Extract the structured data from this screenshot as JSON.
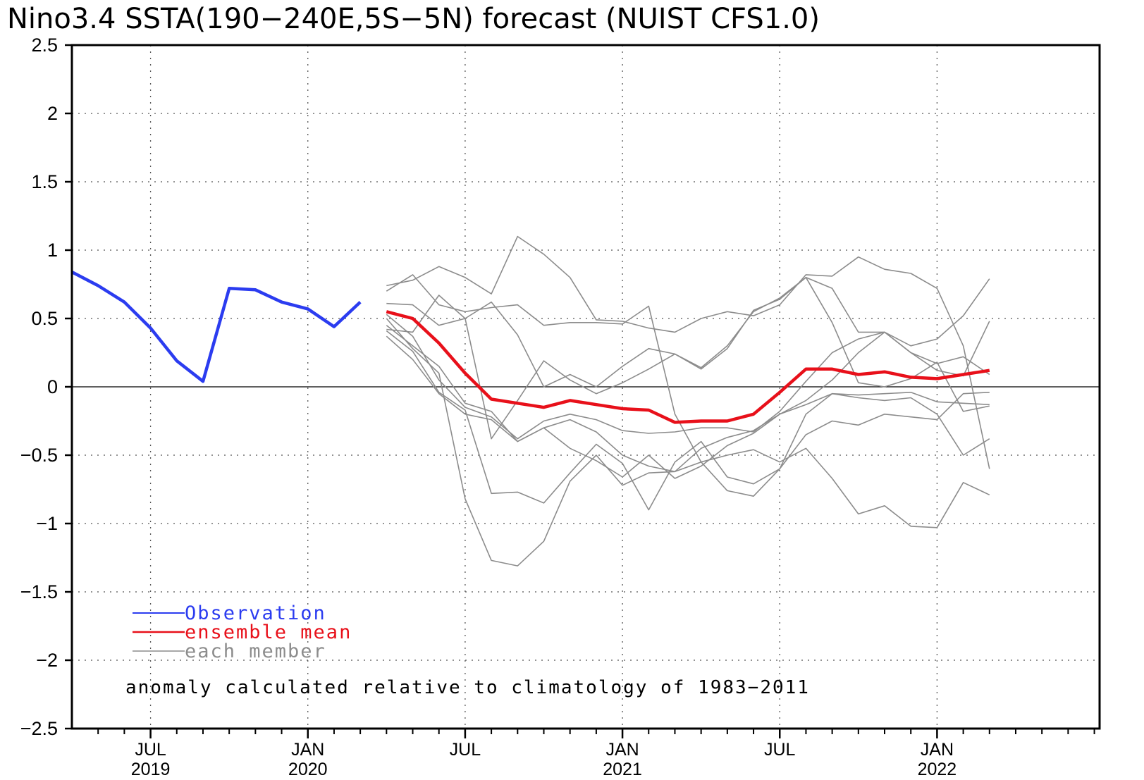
{
  "chart_data": {
    "type": "line",
    "title": "Nino3.4 SSTA(190−240E,5S−5N) forecast (NUIST CFS1.0)",
    "ylim": [
      -2.5,
      2.5
    ],
    "yticks": [
      "2.5",
      "2",
      "1.5",
      "1",
      "0.5",
      "0",
      "−0.5",
      "−1",
      "−1.5",
      "−2",
      "−2.5"
    ],
    "xlim": [
      0,
      39.2
    ],
    "xticks": [
      {
        "x": 3,
        "month": "JUL",
        "year": "2019"
      },
      {
        "x": 9,
        "month": "JAN",
        "year": "2020"
      },
      {
        "x": 15,
        "month": "JUL",
        "year": ""
      },
      {
        "x": 21,
        "month": "JAN",
        "year": "2021"
      },
      {
        "x": 27,
        "month": "JUL",
        "year": ""
      },
      {
        "x": 33,
        "month": "JAN",
        "year": "2022"
      }
    ],
    "grid": true,
    "zero_line": true,
    "legend": [
      {
        "label": "Observation",
        "color": "#2b3cf0"
      },
      {
        "label": "ensemble mean",
        "color": "#e8101a"
      },
      {
        "label": "each member",
        "color": "#8c8c8c"
      }
    ],
    "note": "anomaly calculated relative to climatology of 1983−2011",
    "observation": {
      "color": "#2b3cf0",
      "x": [
        0,
        1,
        2,
        3,
        4,
        5,
        6,
        7,
        8,
        9,
        10,
        11
      ],
      "values": [
        0.84,
        0.74,
        0.62,
        0.43,
        0.19,
        0.04,
        0.72,
        0.71,
        0.62,
        0.57,
        0.44,
        0.62
      ]
    },
    "ensemble_mean": {
      "color": "#e8101a",
      "x": [
        12,
        13,
        14,
        15,
        16,
        17,
        18,
        19,
        20,
        21,
        22,
        23,
        24,
        25,
        26,
        27,
        28,
        29,
        30,
        31,
        32,
        33,
        34,
        35
      ],
      "values": [
        0.55,
        0.5,
        0.32,
        0.1,
        -0.09,
        -0.12,
        -0.15,
        -0.1,
        -0.13,
        -0.16,
        -0.17,
        -0.26,
        -0.25,
        -0.25,
        -0.2,
        -0.04,
        0.13,
        0.13,
        0.09,
        0.11,
        0.07,
        0.06,
        0.09,
        0.12
      ]
    },
    "members": {
      "color": "#8c8c8c",
      "x": [
        12,
        13,
        14,
        15,
        16,
        17,
        18,
        19,
        20,
        21,
        22,
        23,
        24,
        25,
        26,
        27,
        28,
        29,
        30,
        31,
        32,
        33,
        34,
        35
      ],
      "series": [
        [
          0.74,
          0.78,
          0.88,
          0.8,
          0.68,
          1.1,
          0.97,
          0.8,
          0.49,
          0.48,
          0.43,
          0.4,
          0.5,
          0.55,
          0.52,
          0.6,
          0.82,
          0.81,
          0.95,
          0.86,
          0.83,
          0.72,
          0.3,
          -0.6
        ],
        [
          0.7,
          0.82,
          0.6,
          0.55,
          0.58,
          0.6,
          0.45,
          0.47,
          0.47,
          0.46,
          0.59,
          -0.2,
          -0.55,
          -0.76,
          -0.8,
          -0.6,
          -0.35,
          -0.25,
          -0.28,
          -0.2,
          -0.22,
          -0.24,
          -0.05,
          -0.04
        ],
        [
          0.61,
          0.6,
          0.45,
          0.5,
          0.62,
          0.38,
          0.0,
          0.09,
          0.0,
          0.15,
          0.28,
          0.24,
          0.13,
          0.28,
          0.56,
          0.64,
          0.8,
          0.72,
          0.4,
          0.4,
          0.25,
          0.17,
          0.22,
          0.09
        ],
        [
          0.42,
          0.4,
          0.67,
          0.5,
          -0.38,
          -0.1,
          0.19,
          0.05,
          -0.05,
          0.03,
          0.13,
          0.24,
          0.14,
          0.3,
          0.55,
          0.65,
          0.8,
          0.47,
          0.03,
          0.0,
          0.06,
          0.18,
          -0.18,
          -0.14
        ],
        [
          0.53,
          0.37,
          0.05,
          -0.15,
          -0.22,
          -0.38,
          -0.25,
          -0.2,
          -0.24,
          -0.32,
          -0.34,
          -0.33,
          -0.3,
          -0.3,
          -0.33,
          -0.18,
          0.04,
          0.25,
          0.35,
          0.4,
          0.3,
          0.35,
          0.52,
          0.79
        ],
        [
          0.37,
          0.2,
          -0.05,
          -0.2,
          -0.24,
          -0.4,
          -0.3,
          -0.24,
          -0.33,
          -0.5,
          -0.58,
          -0.62,
          -0.45,
          -0.37,
          -0.32,
          -0.2,
          -0.1,
          0.05,
          0.25,
          0.4,
          0.25,
          0.12,
          0.08,
          0.48
        ],
        [
          0.5,
          0.28,
          0.1,
          -0.82,
          -1.27,
          -1.31,
          -1.13,
          -0.69,
          -0.5,
          -0.72,
          -0.63,
          -0.62,
          -0.55,
          -0.5,
          -0.46,
          -0.55,
          -0.45,
          -0.67,
          -0.93,
          -0.87,
          -1.02,
          -1.03,
          -0.7,
          -0.79
        ],
        [
          0.41,
          0.26,
          -0.04,
          -0.17,
          -0.78,
          -0.77,
          -0.85,
          -0.63,
          -0.42,
          -0.56,
          -0.9,
          -0.55,
          -0.4,
          -0.66,
          -0.71,
          -0.6,
          -0.2,
          -0.05,
          -0.08,
          -0.1,
          -0.08,
          -0.2,
          -0.5,
          -0.38
        ],
        [
          0.45,
          0.3,
          0.15,
          -0.12,
          -0.18,
          -0.4,
          -0.3,
          -0.45,
          -0.54,
          -0.66,
          -0.5,
          -0.67,
          -0.58,
          -0.43,
          -0.34,
          -0.2,
          -0.13,
          -0.05,
          -0.06,
          -0.05,
          -0.04,
          -0.11,
          -0.12,
          -0.13
        ]
      ]
    }
  }
}
